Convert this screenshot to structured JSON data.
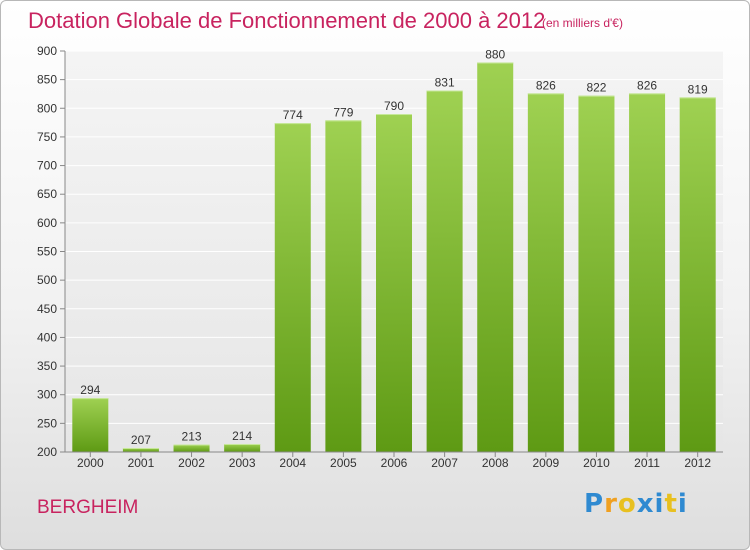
{
  "header": {
    "title": "Dotation Globale de Fonctionnement de 2000 à 2012",
    "unit": "(en milliers d'€)"
  },
  "footer": {
    "city": "BERGHEIM",
    "brand_letters": [
      "P",
      "r",
      "o",
      "x",
      "i",
      "t",
      "i"
    ]
  },
  "colors": {
    "title": "#c8235f",
    "bar_top": "#9fd152",
    "bar_bottom": "#5e9a14",
    "brand": [
      "#2f8ad1",
      "#f0a020",
      "#e8c020",
      "#2f8ad1",
      "#2f8ad1",
      "#e8c020",
      "#2f8ad1"
    ]
  },
  "chart_data": {
    "type": "bar",
    "categories": [
      "2000",
      "2001",
      "2002",
      "2003",
      "2004",
      "2005",
      "2006",
      "2007",
      "2008",
      "2009",
      "2010",
      "2011",
      "2012"
    ],
    "values": [
      294,
      207,
      213,
      214,
      774,
      779,
      790,
      831,
      880,
      826,
      822,
      826,
      819
    ],
    "ylim": [
      200,
      900
    ],
    "yticks": [
      200,
      250,
      300,
      350,
      400,
      450,
      500,
      550,
      600,
      650,
      700,
      750,
      800,
      850,
      900
    ],
    "grid": true,
    "data_labels": true,
    "title": "Dotation Globale de Fonctionnement de 2000 à 2012",
    "xlabel": "",
    "ylabel": ""
  }
}
